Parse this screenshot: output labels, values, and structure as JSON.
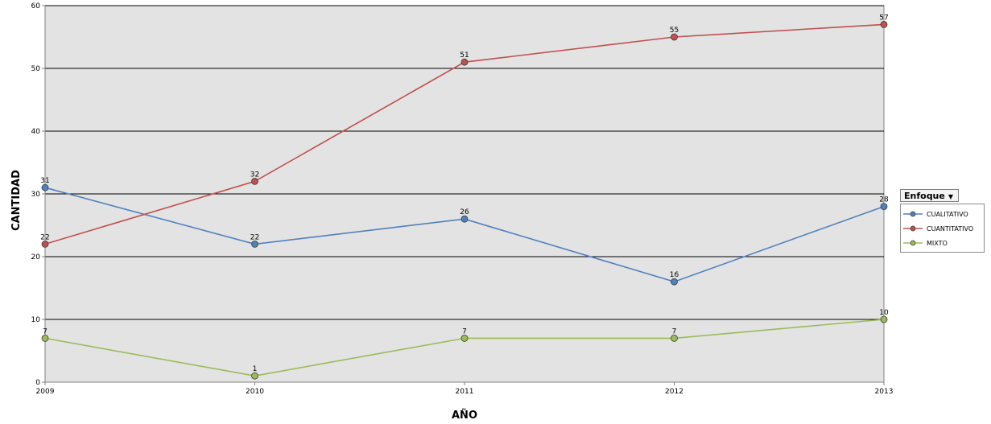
{
  "chart_data": {
    "type": "line",
    "xlabel": "AÑO",
    "ylabel": "CANTIDAD",
    "x": [
      "2009",
      "2010",
      "2011",
      "2012",
      "2013"
    ],
    "ylim": [
      0,
      60
    ],
    "yticks": [
      0,
      10,
      20,
      30,
      40,
      50,
      60
    ],
    "grid": true,
    "legend_title": "Enfoque",
    "legend_placement": "right",
    "series": [
      {
        "name": "CUALITATIVO",
        "values": [
          31,
          22,
          26,
          16,
          28
        ],
        "color": "#4f81bd"
      },
      {
        "name": "CUANTITATIVO",
        "values": [
          22,
          32,
          51,
          55,
          57
        ],
        "color": "#c0504d"
      },
      {
        "name": "MIXTO",
        "values": [
          7,
          1,
          7,
          7,
          10
        ],
        "color": "#9bbb59"
      }
    ],
    "plot_background": "#e3e3e3"
  },
  "legend_filter_icon": "dropdown-arrow-icon"
}
